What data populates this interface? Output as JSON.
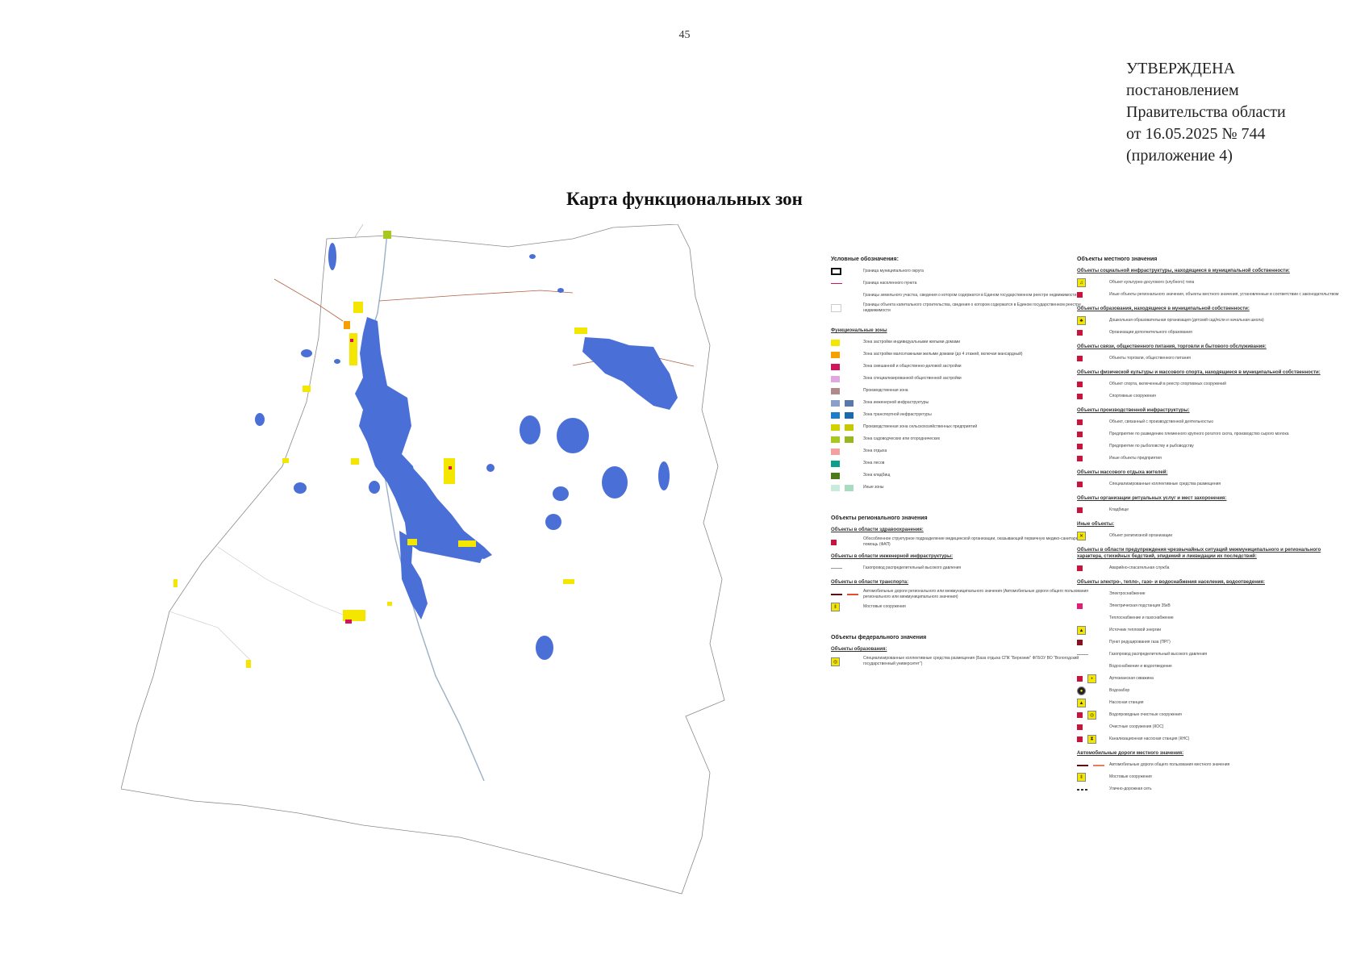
{
  "page_number": "45",
  "approval": {
    "line1": "УТВЕРЖДЕНА",
    "line2": "постановлением",
    "line3": "Правительства области",
    "line4": "от 16.05.2025 № 744",
    "line5": "(приложение 4)"
  },
  "title": "Карта функциональных зон",
  "colors": {
    "lake": "#4a6fd6",
    "settlement": "#f5e600",
    "residential": "#f5a000",
    "public": "#d4145a",
    "infrastructure": "#8aa0c8",
    "transport": "#1a7ec8",
    "agricultural": "#d2d200",
    "agri_production": "#a8c81e",
    "recreation": "#f2a0a0",
    "forest": "#0aa08c",
    "special": "#4e7a1a",
    "other": "#c8ebdc",
    "boundary": "#888888",
    "river": "#9ab0c8",
    "road": "#b06040"
  },
  "legend_left": {
    "heading": "Условные обозначения:",
    "boundaries": [
      "Граница муниципального округа",
      "Граница населенного пункта",
      "Границы земельного участка, сведения о котором содержатся в Едином государственном реестре недвижимости",
      "Границы объекта капитального строительства, сведения о котором содержатся в Едином государственном реестре недвижимости"
    ],
    "zones_heading": "Функциональные зоны",
    "zones": [
      "Зона застройки индивидуальными жилыми домами",
      "Зона застройки малоэтажными жилыми домами (до 4 этажей, включая мансардный)",
      "Зона смешанной и общественно-деловой застройки",
      "Зона специализированной общественной застройки",
      "Производственная зона",
      "Зона инженерной инфраструктуры",
      "Зона транспортной инфраструктуры",
      "Производственная зона сельскохозяйственных предприятий",
      "Зона садоводческих или огороднических",
      "Зона отдыха",
      "Зона лесов",
      "Зона кладбищ",
      "Иные зоны"
    ],
    "regional_heading": "Объекты регионального значения",
    "regional_groups": [
      {
        "title": "Объекты в области здравоохранения:",
        "items": [
          "Обособленное структурное подразделение медицинской организации, оказывающей первичную медико-санитарную помощь (ФАП)"
        ]
      },
      {
        "title": "Объекты в области инженерной инфраструктуры:",
        "items": [
          "Газопровод распределительный высокого давления"
        ]
      },
      {
        "title": "Объекты в области транспорта:",
        "items": [
          "Автомобильные дороги регионального или межмуниципального значения (Автомобильные дороги общего пользования регионального или межмуниципального значения)",
          "Мостовые сооружения"
        ]
      }
    ],
    "federal_heading": "Объекты федерального значения",
    "federal_groups": [
      {
        "title": "Объекты образования:",
        "items": [
          "Специализированные коллективные средства размещения (База отдыха СПК \"Березник\" ФГБОУ ВО \"Вологодский государственный университет\")"
        ]
      }
    ]
  },
  "legend_right": {
    "heading": "Объекты местного значения",
    "groups": [
      {
        "title": "Объекты социальной инфраструктуры, находящиеся в муниципальной собственности:",
        "items": [
          "Объект культурно-досугового (клубного) типа",
          "Иные объекты регионального значения, объекты местного значения, установленные в соответствии с законодательством"
        ]
      },
      {
        "title": "Объекты образования, находящиеся в муниципальной собственности:",
        "items": [
          "Дошкольная образовательная организация (детский сад/ясли и начальная школа)",
          "Организации дополнительного образования"
        ]
      },
      {
        "title": "Объекты связи, общественного питания, торговли и бытового обслуживания:",
        "items": [
          "Объекты торговли, общественного питания"
        ]
      },
      {
        "title": "Объекты физической культуры и массового спорта, находящиеся в муниципальной собственности:",
        "items": [
          "Объект спорта, включенный в реестр спортивных сооружений",
          "Спортивные сооружения"
        ]
      },
      {
        "title": "Объекты производственной инфраструктуры:",
        "items": [
          "Объект, связанный с производственной деятельностью",
          "Предприятие по разведению племенного крупного рогатого скота, производство сырого молока",
          "Предприятие по рыболовству и рыбоводству",
          "Иные объекты предприятия"
        ]
      },
      {
        "title": "Объекты массового отдыха жителей:",
        "items": [
          "Специализированные коллективные средства размещения"
        ]
      },
      {
        "title": "Объекты организации ритуальных услуг и мест захоронения:",
        "items": [
          "Кладбище"
        ]
      },
      {
        "title": "Иные объекты:",
        "items": [
          "Объект религиозной организации"
        ]
      },
      {
        "title": "Объекты в области предупреждения чрезвычайных ситуаций межмуниципального и регионального характера, стихийных бедствий, эпидемий и ликвидации их последствий:",
        "items": [
          "Аварийно-спасательная служба"
        ]
      },
      {
        "title": "Объекты электро-, тепло-, газо- и водоснабжения населения, водоотведения:",
        "items": [
          "Электроснабжение",
          "Электрическая подстанция 35кВ",
          "Теплоснабжение и газоснабжение",
          "Источник тепловой энергии",
          "Пункт редуцирования газа (ПРГ)",
          "Газопровод распределительный высокого давления",
          "Водоснабжение и водоотведение",
          "Артезианская скважина",
          "Водозабор",
          "Насосная станция",
          "Водопроводные очистные сооружения",
          "Очистные сооружения (КОС)",
          "Канализационная насосная станция (КНС)"
        ]
      },
      {
        "title": "Автомобильные дороги местного значения:",
        "items": [
          "Автомобильные дороги общего пользования местного значения",
          "Мостовые сооружения",
          "Улично-дорожная сеть"
        ]
      }
    ]
  }
}
